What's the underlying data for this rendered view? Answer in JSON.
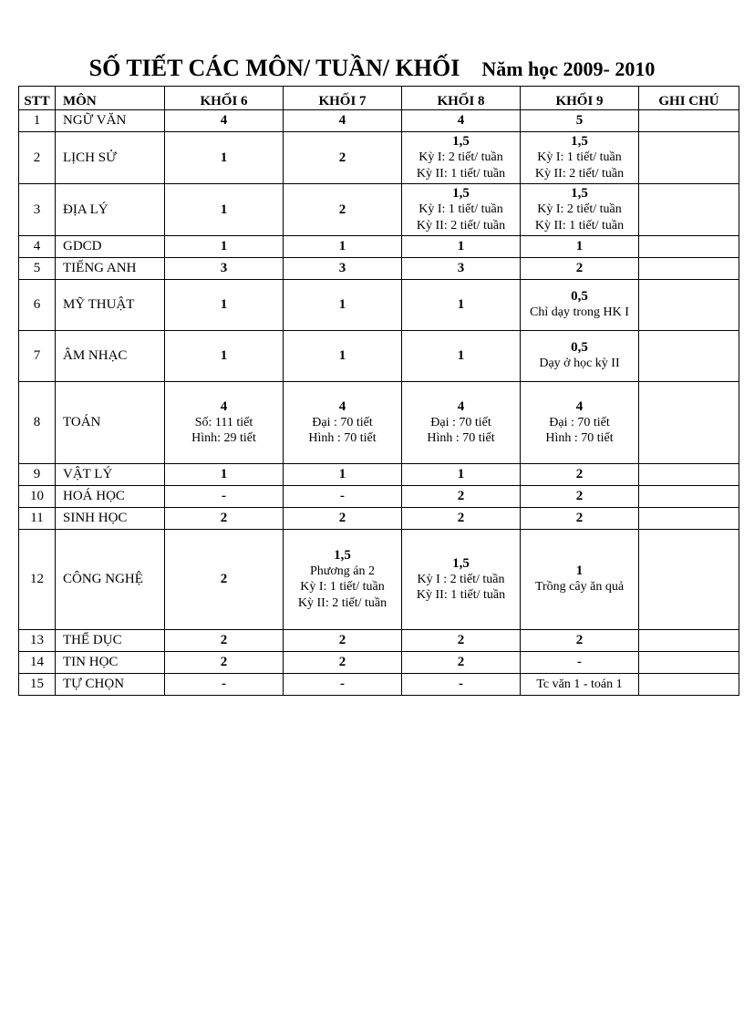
{
  "title": "SỐ TIẾT CÁC MÔN/ TUẦN/ KHỐI",
  "subtitle": "Năm học 2009- 2010",
  "columns": [
    "STT",
    "MÔN",
    "KHỐI 6",
    "KHỐI 7",
    "KHỐI 8",
    "KHỐI 9",
    "GHI CHÚ"
  ],
  "rows": [
    {
      "stt": "1",
      "mon": "NGỮ VĂN",
      "k6": {
        "m": "4"
      },
      "k7": {
        "m": "4"
      },
      "k8": {
        "m": "4"
      },
      "k9": {
        "m": "5"
      },
      "gc": "",
      "h": "short"
    },
    {
      "stt": "2",
      "mon": "LỊCH SỬ",
      "k6": {
        "m": "1"
      },
      "k7": {
        "m": "2"
      },
      "k8": {
        "m": "1,5",
        "s1": "Kỳ I: 2 tiết/ tuần",
        "s2": "Kỳ II: 1 tiết/ tuần"
      },
      "k9": {
        "m": "1,5",
        "s1": "Kỳ I: 1 tiết/ tuần",
        "s2": "Kỳ II: 2 tiết/ tuần"
      },
      "gc": "",
      "h": "tall"
    },
    {
      "stt": "3",
      "mon": "ĐỊA LÝ",
      "k6": {
        "m": "1"
      },
      "k7": {
        "m": "2"
      },
      "k8": {
        "m": "1,5",
        "s1": "Kỳ I: 1 tiết/ tuần",
        "s2": "Kỳ II: 2 tiết/ tuần"
      },
      "k9": {
        "m": "1,5",
        "s1": "Kỳ I: 2 tiết/ tuần",
        "s2": "Kỳ II: 1 tiết/ tuần"
      },
      "gc": "",
      "h": "tall"
    },
    {
      "stt": "4",
      "mon": "GDCD",
      "k6": {
        "m": "1"
      },
      "k7": {
        "m": "1"
      },
      "k8": {
        "m": "1"
      },
      "k9": {
        "m": "1"
      },
      "gc": "",
      "h": "short"
    },
    {
      "stt": "5",
      "mon": "TIẾNG ANH",
      "k6": {
        "m": "3"
      },
      "k7": {
        "m": "3"
      },
      "k8": {
        "m": "3"
      },
      "k9": {
        "m": "2"
      },
      "gc": "",
      "h": "short"
    },
    {
      "stt": "6",
      "mon": "MỸ THUẬT",
      "k6": {
        "m": "1"
      },
      "k7": {
        "m": "1"
      },
      "k8": {
        "m": "1"
      },
      "k9": {
        "m": "0,5",
        "s1": "Chỉ dạy trong HK I"
      },
      "gc": "",
      "h": "tall"
    },
    {
      "stt": "7",
      "mon": "ÂM NHẠC",
      "k6": {
        "m": "1"
      },
      "k7": {
        "m": "1"
      },
      "k8": {
        "m": "1"
      },
      "k9": {
        "m": "0,5",
        "s1": "Dạy ở học kỳ II"
      },
      "gc": "",
      "h": "tall"
    },
    {
      "stt": "8",
      "mon": "TOÁN",
      "k6": {
        "m": "4",
        "s1": "Số: 111 tiết",
        "s2": "Hình: 29 tiết"
      },
      "k7": {
        "m": "4",
        "s1": "Đại : 70 tiết",
        "s2": "Hình : 70 tiết"
      },
      "k8": {
        "m": "4",
        "s1": "Đại : 70 tiết",
        "s2": "Hình : 70 tiết"
      },
      "k9": {
        "m": "4",
        "s1": "Đại : 70 tiết",
        "s2": "Hình : 70 tiết"
      },
      "gc": "",
      "h": "vtall"
    },
    {
      "stt": "9",
      "mon": "VẬT LÝ",
      "k6": {
        "m": "1"
      },
      "k7": {
        "m": "1"
      },
      "k8": {
        "m": "1"
      },
      "k9": {
        "m": "2"
      },
      "gc": "",
      "h": "short"
    },
    {
      "stt": "10",
      "mon": "HOÁ HỌC",
      "k6": {
        "m": "-"
      },
      "k7": {
        "m": "-"
      },
      "k8": {
        "m": "2"
      },
      "k9": {
        "m": "2"
      },
      "gc": "",
      "h": "short"
    },
    {
      "stt": "11",
      "mon": "SINH HỌC",
      "k6": {
        "m": "2"
      },
      "k7": {
        "m": "2"
      },
      "k8": {
        "m": "2"
      },
      "k9": {
        "m": "2"
      },
      "gc": "",
      "h": "short"
    },
    {
      "stt": "12",
      "mon": "CÔNG NGHỆ",
      "k6": {
        "m": "2"
      },
      "k7": {
        "m": "1,5",
        "s1": "Phương án 2",
        "s2": "Kỳ I: 1 tiết/ tuần",
        "s3": "Kỳ II: 2 tiết/ tuần"
      },
      "k8": {
        "m": "1,5",
        "s1": "Kỳ I : 2 tiết/ tuần",
        "s2": "Kỳ II: 1 tiết/ tuần"
      },
      "k9": {
        "m": "1",
        "s1": "Trồng cây ăn quả"
      },
      "gc": "",
      "h": "vvtall"
    },
    {
      "stt": "13",
      "mon": "THỂ DỤC",
      "k6": {
        "m": "2"
      },
      "k7": {
        "m": "2"
      },
      "k8": {
        "m": "2"
      },
      "k9": {
        "m": "2"
      },
      "gc": "",
      "h": "short"
    },
    {
      "stt": "14",
      "mon": "TIN HỌC",
      "k6": {
        "m": "2"
      },
      "k7": {
        "m": "2"
      },
      "k8": {
        "m": "2"
      },
      "k9": {
        "m": "-"
      },
      "gc": "",
      "h": "short"
    },
    {
      "stt": "15",
      "mon": "TỰ CHỌN",
      "k6": {
        "m": "-"
      },
      "k7": {
        "m": "-"
      },
      "k8": {
        "m": "-"
      },
      "k9": {
        "m": "",
        "s1": "Tc văn 1 - toán 1"
      },
      "gc": "",
      "h": "short"
    }
  ],
  "style": {
    "background_color": "#ffffff",
    "text_color": "#000000",
    "border_color": "#000000",
    "title_fontsize": 26,
    "subtitle_fontsize": 22,
    "cell_fontsize": 15,
    "font_family": "Times New Roman"
  }
}
